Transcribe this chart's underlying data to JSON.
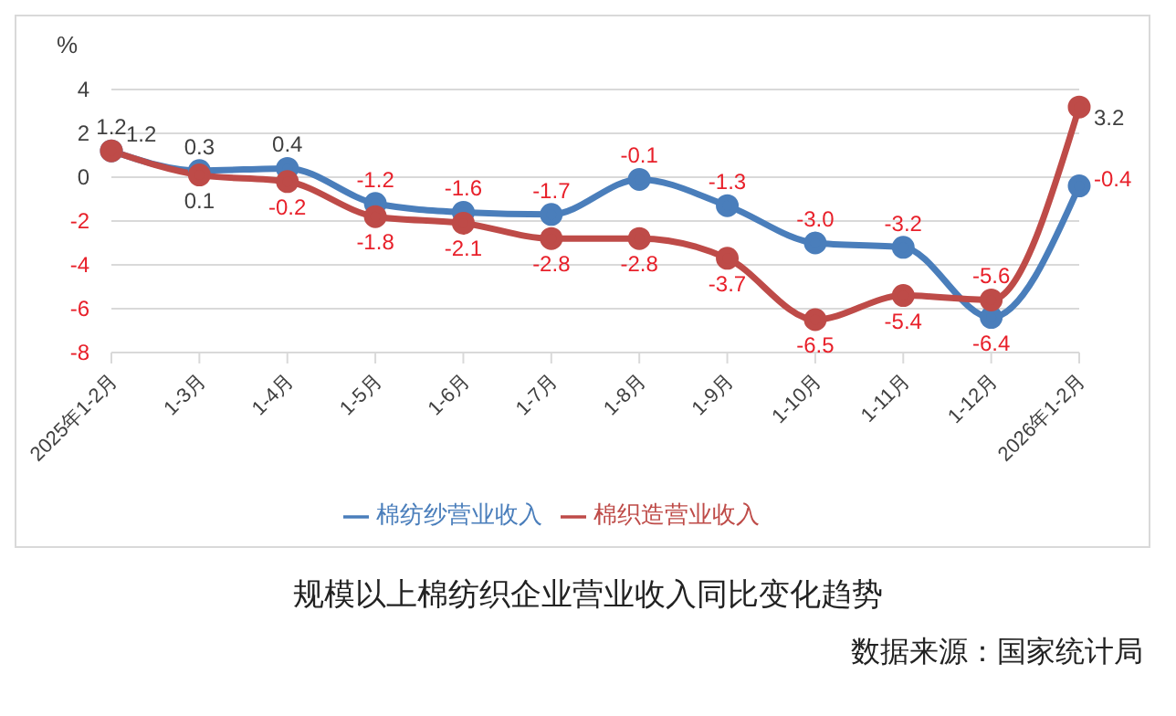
{
  "chart_data": {
    "type": "line",
    "title": "规模以上棉纺织企业营业收入同比变化趋势",
    "ylabel": "%",
    "annotations": [
      "数据来源：国家统计局"
    ],
    "categories": [
      "2025年1-2月",
      "1-3月",
      "1-4月",
      "1-5月",
      "1-6月",
      "1-7月",
      "1-8月",
      "1-9月",
      "1-10月",
      "1-11月",
      "1-12月",
      "2026年1-2月"
    ],
    "series": [
      {
        "name": "棉纺纱营业收入",
        "color": "#4a7ebb",
        "values": [
          1.2,
          0.3,
          0.4,
          -1.2,
          -1.6,
          -1.7,
          -0.1,
          -1.3,
          -3.0,
          -3.2,
          -6.4,
          -0.4
        ],
        "value_labels": [
          "1.2",
          "0.3",
          "0.4",
          "-1.2",
          "-1.6",
          "-1.7",
          "-0.1",
          "-1.3",
          "-3.0",
          "-3.2",
          "-6.4",
          "-0.4"
        ]
      },
      {
        "name": "棉织造营业收入",
        "color": "#be4b48",
        "values": [
          1.2,
          0.1,
          -0.2,
          -1.8,
          -2.1,
          -2.8,
          -2.8,
          -3.7,
          -6.5,
          -5.4,
          -5.6,
          3.2
        ],
        "value_labels": [
          "1.2",
          "0.1",
          "-0.2",
          "-1.8",
          "-2.1",
          "-2.8",
          "-2.8",
          "-3.7",
          "-6.5",
          "-5.4",
          "-5.6",
          "3.2"
        ]
      }
    ],
    "ylim": [
      -8,
      4
    ],
    "yticks": [
      -8,
      -6,
      -4,
      -2,
      0,
      2,
      4
    ],
    "grid": "y",
    "legend": "bottom",
    "marker": "circle",
    "line_style": "solid"
  }
}
